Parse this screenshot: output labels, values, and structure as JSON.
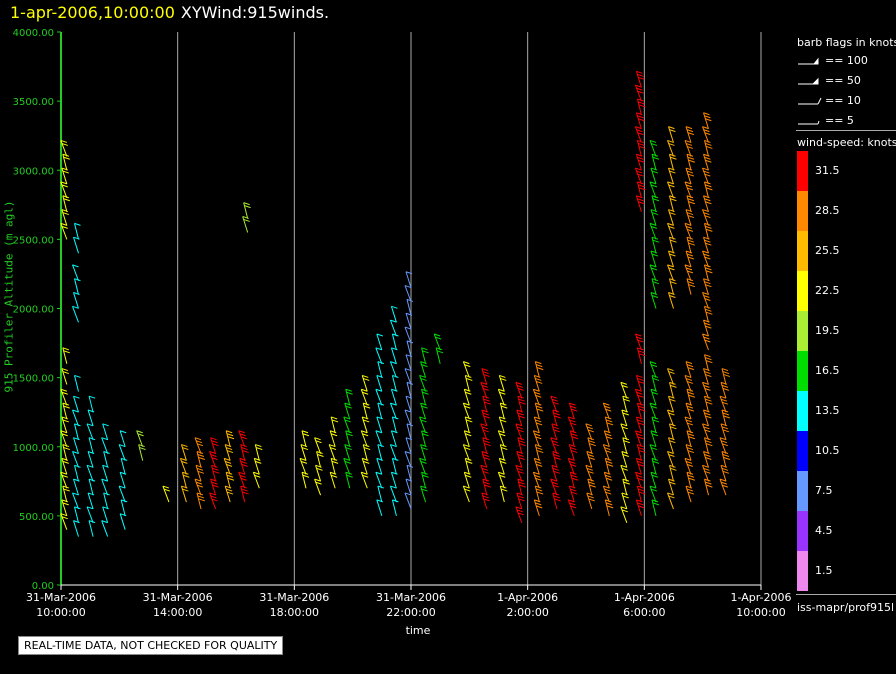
{
  "header": {
    "timestamp": "1-apr-2006,10:00:00",
    "product": "XYWind:915winds."
  },
  "qc_notice": "REAL-TIME DATA, NOT CHECKED FOR QUALITY",
  "source": "iss-mapr/prof915l",
  "barb_legend": {
    "title": "barb flags in knots",
    "entries": [
      "== 100",
      "== 50",
      "== 10",
      "== 5"
    ]
  },
  "colorbar": {
    "title": "wind-speed: knots",
    "levels": [
      {
        "label": "31.5",
        "color": "#ff0000"
      },
      {
        "label": "28.5",
        "color": "#ff8800"
      },
      {
        "label": "25.5",
        "color": "#ffbb00"
      },
      {
        "label": "22.5",
        "color": "#ffff00"
      },
      {
        "label": "19.5",
        "color": "#aaee33"
      },
      {
        "label": "16.5",
        "color": "#00dd00"
      },
      {
        "label": "13.5",
        "color": "#00ffff"
      },
      {
        "label": "10.5",
        "color": "#0000ff"
      },
      {
        "label": "7.5",
        "color": "#6699ff"
      },
      {
        "label": "4.5",
        "color": "#9933ff"
      },
      {
        "label": "1.5",
        "color": "#ee88ee"
      }
    ]
  },
  "chart_data": {
    "type": "scatter",
    "xlabel": "time",
    "ylabel": "915 Profiler Altitude (m agl)",
    "ylim": [
      0,
      4000
    ],
    "x_ticks": [
      {
        "line1": "31-Mar-2006",
        "line2": "10:00:00"
      },
      {
        "line1": "31-Mar-2006",
        "line2": "14:00:00"
      },
      {
        "line1": "31-Mar-2006",
        "line2": "18:00:00"
      },
      {
        "line1": "31-Mar-2006",
        "line2": "22:00:00"
      },
      {
        "line1": "1-Apr-2006",
        "line2": "2:00:00"
      },
      {
        "line1": "1-Apr-2006",
        "line2": "6:00:00"
      },
      {
        "line1": "1-Apr-2006",
        "line2": "10:00:00"
      }
    ],
    "y_ticks": [
      "0.00",
      "500.00",
      "1000.00",
      "1500.00",
      "2000.00",
      "2500.00",
      "3000.00",
      "3500.00",
      "4000.00"
    ],
    "grid": "vertical lines at each x tick",
    "wind_barbs": [
      {
        "hours": 0.2,
        "altitudes": [
          400,
          500,
          600,
          700,
          800,
          900,
          1000,
          1100,
          1200,
          1300,
          1450,
          1600,
          2500,
          2600,
          2700,
          2800,
          2900,
          3000,
          3100
        ],
        "speed_kt": 25
      },
      {
        "hours": 0.6,
        "altitudes": [
          350,
          450,
          550,
          650,
          750,
          850,
          950,
          1050,
          1150,
          1250,
          1400,
          1900,
          2000,
          2100,
          2200,
          2400,
          2500
        ],
        "speed_kt": 12
      },
      {
        "hours": 1.1,
        "altitudes": [
          350,
          450,
          550,
          650,
          750,
          850,
          950,
          1050,
          1150,
          1250
        ],
        "speed_kt": 10
      },
      {
        "hours": 1.6,
        "altitudes": [
          350,
          450,
          550,
          650,
          750,
          850,
          950,
          1050
        ],
        "speed_kt": 14
      },
      {
        "hours": 2.2,
        "altitudes": [
          400,
          500,
          600,
          700,
          800,
          900,
          1000
        ],
        "speed_kt": 12
      },
      {
        "hours": 2.8,
        "altitudes": [
          900,
          1000
        ],
        "speed_kt": 20
      },
      {
        "hours": 3.7,
        "altitudes": [
          600
        ],
        "speed_kt": 22
      },
      {
        "hours": 4.3,
        "altitudes": [
          600,
          700,
          800,
          900
        ],
        "speed_kt": 27
      },
      {
        "hours": 4.8,
        "altitudes": [
          550,
          650,
          750,
          850,
          950
        ],
        "speed_kt": 28
      },
      {
        "hours": 5.3,
        "altitudes": [
          550,
          650,
          750,
          850,
          950
        ],
        "speed_kt": 30
      },
      {
        "hours": 5.8,
        "altitudes": [
          600,
          700,
          800,
          900,
          1000
        ],
        "speed_kt": 27
      },
      {
        "hours": 6.3,
        "altitudes": [
          600,
          700,
          800,
          900,
          1000
        ],
        "speed_kt": 29
      },
      {
        "hours": 6.8,
        "altitudes": [
          700,
          800,
          900
        ],
        "speed_kt": 25
      },
      {
        "hours": 6.4,
        "altitudes": [
          2550,
          2650
        ],
        "speed_kt": 17
      },
      {
        "hours": 8.4,
        "altitudes": [
          700,
          800,
          900,
          1000
        ],
        "speed_kt": 25
      },
      {
        "hours": 8.9,
        "altitudes": [
          650,
          750,
          850,
          950
        ],
        "speed_kt": 22
      },
      {
        "hours": 9.4,
        "altitudes": [
          700,
          800,
          900,
          1000,
          1100
        ],
        "speed_kt": 19
      },
      {
        "hours": 9.9,
        "altitudes": [
          700,
          800,
          900,
          1000,
          1100,
          1200,
          1300
        ],
        "speed_kt": 17
      },
      {
        "hours": 10.5,
        "altitudes": [
          700,
          800,
          900,
          1000,
          1100,
          1200,
          1300,
          1400
        ],
        "speed_kt": 20
      },
      {
        "hours": 11.0,
        "altitudes": [
          500,
          600,
          700,
          800,
          900,
          1000,
          1100,
          1200,
          1300,
          1400,
          1500,
          1600,
          1700
        ],
        "speed_kt": 14
      },
      {
        "hours": 11.5,
        "altitudes": [
          500,
          600,
          700,
          800,
          900,
          1000,
          1100,
          1200,
          1300,
          1400,
          1500,
          1600,
          1700,
          1800,
          1900
        ],
        "speed_kt": 13
      },
      {
        "hours": 12.0,
        "altitudes": [
          550,
          650,
          750,
          850,
          950,
          1050,
          1150,
          1250,
          1350,
          1450,
          1550,
          1650,
          1750,
          1850,
          1950,
          2050,
          2150
        ],
        "speed_kt": 9
      },
      {
        "hours": 12.5,
        "altitudes": [
          600,
          700,
          800,
          900,
          1000,
          1100,
          1200,
          1300,
          1400,
          1500,
          1600
        ],
        "speed_kt": 17
      },
      {
        "hours": 13.0,
        "altitudes": [
          1600,
          1700
        ],
        "speed_kt": 12
      },
      {
        "hours": 14.0,
        "altitudes": [
          600,
          700,
          800,
          900,
          1000,
          1100,
          1200,
          1300,
          1400,
          1500
        ],
        "speed_kt": 24
      },
      {
        "hours": 14.6,
        "altitudes": [
          550,
          650,
          750,
          850,
          950,
          1050,
          1150,
          1250,
          1350,
          1450
        ],
        "speed_kt": 29
      },
      {
        "hours": 15.2,
        "altitudes": [
          600,
          700,
          800,
          900,
          1000,
          1100,
          1200,
          1300,
          1400
        ],
        "speed_kt": 23
      },
      {
        "hours": 15.8,
        "altitudes": [
          450,
          550,
          650,
          750,
          850,
          950,
          1050,
          1150,
          1250,
          1350
        ],
        "speed_kt": 31
      },
      {
        "hours": 16.4,
        "altitudes": [
          500,
          600,
          700,
          800,
          900,
          1000,
          1100,
          1200,
          1300,
          1400,
          1500
        ],
        "speed_kt": 32
      },
      {
        "hours": 17.0,
        "altitudes": [
          550,
          650,
          750,
          850,
          950,
          1050,
          1150,
          1250
        ],
        "speed_kt": 30
      },
      {
        "hours": 17.6,
        "altitudes": [
          500,
          600,
          700,
          800,
          900,
          1000,
          1100,
          1200
        ],
        "speed_kt": 31
      },
      {
        "hours": 18.2,
        "altitudes": [
          550,
          650,
          750,
          850,
          950,
          1050
        ],
        "speed_kt": 29
      },
      {
        "hours": 18.8,
        "altitudes": [
          500,
          600,
          700,
          800,
          900,
          1000,
          1100,
          1200
        ],
        "speed_kt": 27
      },
      {
        "hours": 19.4,
        "altitudes": [
          450,
          550,
          650,
          750,
          850,
          950,
          1050,
          1150,
          1250,
          1350
        ],
        "speed_kt": 24
      },
      {
        "hours": 19.9,
        "altitudes": [
          500,
          600,
          700,
          800,
          900,
          1000,
          1100,
          1200,
          1300,
          1400,
          1600,
          1700,
          2700,
          2800,
          2900,
          3000,
          3100,
          3200,
          3300,
          3400,
          3500,
          3600
        ],
        "speed_kt": 29
      },
      {
        "hours": 20.4,
        "altitudes": [
          500,
          600,
          700,
          800,
          900,
          1000,
          1100,
          1200,
          1300,
          1400,
          1500,
          2000,
          2100,
          2200,
          2300,
          2400,
          2500,
          2600,
          2700,
          2800,
          2900,
          3000,
          3100
        ],
        "speed_kt": 20
      },
      {
        "hours": 21.0,
        "altitudes": [
          550,
          650,
          750,
          850,
          950,
          1050,
          1150,
          1250,
          1350,
          1450,
          2000,
          2100,
          2200,
          2300,
          2400,
          2500,
          2600,
          2700,
          2800,
          2900,
          3000,
          3100,
          3200
        ],
        "speed_kt": 24
      },
      {
        "hours": 21.6,
        "altitudes": [
          600,
          700,
          800,
          900,
          1000,
          1100,
          1200,
          1300,
          1400,
          1500,
          2100,
          2200,
          2300,
          2400,
          2500,
          2600,
          2700,
          2800,
          2900,
          3000,
          3100,
          3200
        ],
        "speed_kt": 26
      },
      {
        "hours": 22.2,
        "altitudes": [
          650,
          750,
          850,
          950,
          1050,
          1150,
          1250,
          1350,
          1450,
          1550,
          1700,
          1800,
          1900,
          2000,
          2100,
          2200,
          2300,
          2400,
          2500,
          2600,
          2700,
          2800,
          2900,
          3000,
          3100,
          3200,
          3300
        ],
        "speed_kt": 28
      },
      {
        "hours": 22.8,
        "altitudes": [
          650,
          750,
          850,
          950,
          1050,
          1150,
          1250,
          1350,
          1450
        ],
        "speed_kt": 25
      }
    ]
  }
}
